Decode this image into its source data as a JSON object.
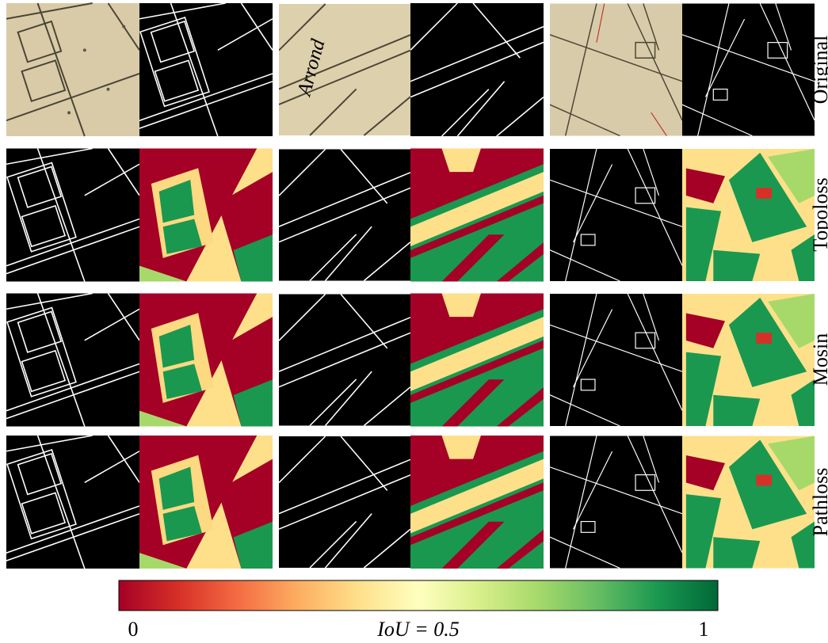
{
  "rows": [
    "Original",
    "Topoloss",
    "Mosin",
    "Pathloss"
  ],
  "colorbar": {
    "lim": [
      0,
      1
    ],
    "ticks": [
      0,
      {
        "value": 0.5,
        "label": "IoU = 0.5"
      },
      1
    ]
  }
}
